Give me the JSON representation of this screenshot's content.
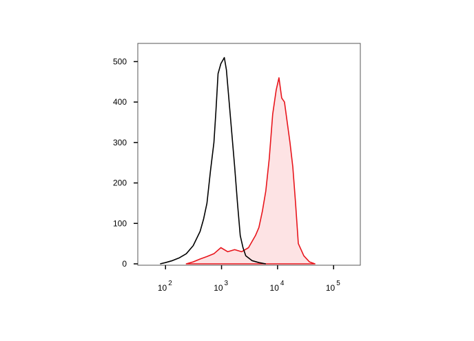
{
  "chart_data": {
    "type": "line",
    "xscale": "log",
    "xlim": [
      32,
      300000
    ],
    "ylim": [
      0,
      545
    ],
    "xticks": [
      {
        "value": 100,
        "label": "10",
        "exponent": "2"
      },
      {
        "value": 1000,
        "label": "10",
        "exponent": "3"
      },
      {
        "value": 10000,
        "label": "10",
        "exponent": "4"
      },
      {
        "value": 100000,
        "label": "10",
        "exponent": "5"
      }
    ],
    "yticks": [
      0,
      100,
      200,
      300,
      400,
      500
    ],
    "series": [
      {
        "color": "#000000",
        "x": [
          80,
          100,
          133,
          177,
          235,
          312,
          414,
          477,
          550,
          634,
          731,
          796,
          866,
          972,
          1120,
          1219,
          1368,
          1531,
          1716,
          1924,
          2154,
          2415,
          2705,
          3491,
          4642,
          6166
        ],
        "values": [
          0,
          3,
          8,
          15,
          25,
          45,
          80,
          110,
          150,
          230,
          300,
          380,
          470,
          495,
          510,
          480,
          400,
          320,
          240,
          150,
          70,
          40,
          20,
          8,
          3,
          0
        ]
      },
      {
        "color": "#e8141b",
        "fill": "#fde3e4",
        "x": [
          235,
          312,
          414,
          550,
          731,
          972,
          1291,
          1716,
          2280,
          3030,
          4027,
          4642,
          5350,
          6166,
          7108,
          8193,
          9446,
          10590,
          11860,
          13290,
          14890,
          16680,
          18690,
          20940,
          23460,
          29460,
          36990,
          46420
        ],
        "values": [
          0,
          5,
          12,
          18,
          25,
          40,
          30,
          35,
          30,
          40,
          70,
          90,
          130,
          180,
          260,
          370,
          430,
          460,
          410,
          400,
          350,
          300,
          240,
          150,
          50,
          20,
          5,
          0
        ]
      }
    ]
  }
}
